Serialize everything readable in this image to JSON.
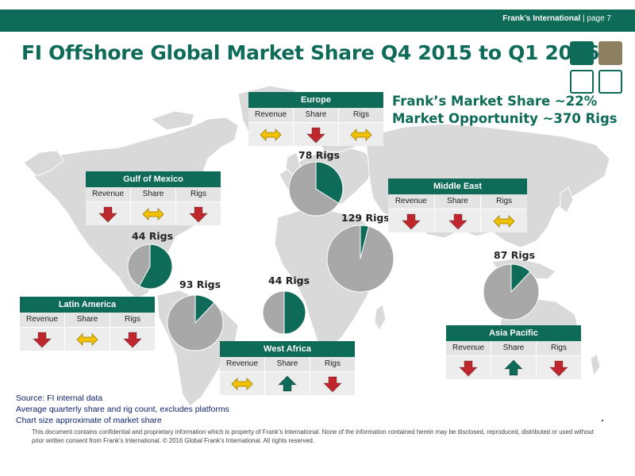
{
  "header": {
    "company": "Frank’s International",
    "separator": "|",
    "page": "page 7"
  },
  "title": "FI Offshore Global Market Share Q4 2015 to Q1 2016",
  "headline": {
    "market_share": "Frank’s Market Share ~22%",
    "opportunity": "Market Opportunity ~370 Rigs"
  },
  "colors": {
    "brand_green": "#0d6b57",
    "pie_gray": "#a8a8a8",
    "arrow_down": "#c0272d",
    "arrow_up": "#0d6b57",
    "arrow_flat": "#f2c200",
    "logo_tan": "#8c8060"
  },
  "columns": [
    "Revenue",
    "Share",
    "Rigs"
  ],
  "chart_data": {
    "type": "pie",
    "regions": [
      {
        "name": "Europe",
        "rigs": 78,
        "rigs_label": "78 Rigs",
        "share_fraction": 0.34,
        "trend": {
          "Revenue": "flat",
          "Share": "down",
          "Rigs": "flat"
        }
      },
      {
        "name": "Gulf of Mexico",
        "rigs": 44,
        "rigs_label": "44 Rigs",
        "share_fraction": 0.58,
        "trend": {
          "Revenue": "down",
          "Share": "flat",
          "Rigs": "down"
        }
      },
      {
        "name": "Middle East",
        "rigs": 129,
        "rigs_label": "129 Rigs",
        "share_fraction": 0.04,
        "trend": {
          "Revenue": "down",
          "Share": "down",
          "Rigs": "flat"
        }
      },
      {
        "name": "Latin America",
        "rigs": 93,
        "rigs_label": "93 Rigs",
        "share_fraction": 0.12,
        "trend": {
          "Revenue": "down",
          "Share": "flat",
          "Rigs": "down"
        }
      },
      {
        "name": "West Africa",
        "rigs": 44,
        "rigs_label": "44 Rigs",
        "share_fraction": 0.5,
        "trend": {
          "Revenue": "flat",
          "Share": "up",
          "Rigs": "down"
        }
      },
      {
        "name": "Asia Pacific",
        "rigs": 87,
        "rigs_label": "87 Rigs",
        "share_fraction": 0.12,
        "trend": {
          "Revenue": "down",
          "Share": "up",
          "Rigs": "down"
        }
      }
    ]
  },
  "footnotes": [
    "Source: FI internal data",
    "Average quarterly share and rig count, excludes platforms",
    "Chart size approximate of market share"
  ],
  "disclaimer": "This document contains confidential and proprietary information which is property of Frank’s International. None of the information contained herein may be disclosed, reproduced, distributed or used without prior written consent from Frank’s International. © 2016 Global Frank’s International. All rights reserved."
}
